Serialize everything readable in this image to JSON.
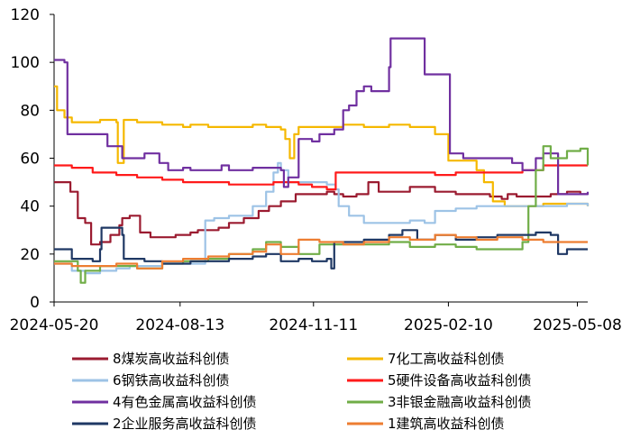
{
  "chart_data": {
    "type": "line",
    "ylim": [
      0,
      120
    ],
    "yticks": [
      0,
      20,
      40,
      60,
      80,
      100,
      120
    ],
    "xlim": [
      "2024-05-20",
      "2025-05-15"
    ],
    "xticks": [
      "2024-05-20",
      "2024-08-13",
      "2024-11-11",
      "2025-02-10",
      "2025-05-08"
    ],
    "legend_position": "bottom",
    "grid": false,
    "series": [
      {
        "name": "8煤炭高收益科创债",
        "color": "#9b1b30",
        "x": [
          "2024-05-20",
          "2024-05-27",
          "2024-05-31",
          "2024-06-05",
          "2024-06-10",
          "2024-06-14",
          "2024-06-20",
          "2024-06-27",
          "2024-07-03",
          "2024-07-05",
          "2024-07-10",
          "2024-07-17",
          "2024-07-24",
          "2024-08-01",
          "2024-08-10",
          "2024-08-20",
          "2024-08-25",
          "2024-09-01",
          "2024-09-08",
          "2024-09-15",
          "2024-09-25",
          "2024-10-05",
          "2024-10-12",
          "2024-10-20",
          "2024-10-30",
          "2024-11-05",
          "2024-11-15",
          "2024-11-20",
          "2024-11-25",
          "2024-12-01",
          "2024-12-10",
          "2024-12-18",
          "2024-12-25",
          "2025-01-05",
          "2025-01-15",
          "2025-02-01",
          "2025-02-15",
          "2025-03-01",
          "2025-03-10",
          "2025-03-18",
          "2025-03-22",
          "2025-03-28",
          "2025-04-10",
          "2025-04-20",
          "2025-05-01",
          "2025-05-10",
          "2025-05-15"
        ],
        "y": [
          50,
          50,
          46,
          35,
          33,
          24,
          25,
          28,
          32,
          35,
          36,
          29,
          27,
          27,
          28,
          29,
          30,
          30,
          31,
          33,
          35,
          38,
          40,
          42,
          45,
          45,
          45,
          46,
          45,
          44,
          45,
          50,
          46,
          46,
          48,
          46,
          45,
          45,
          44,
          43,
          45,
          44,
          44,
          45,
          46,
          45,
          45
        ]
      },
      {
        "name": "7化工高收益科创债",
        "color": "#f5b800",
        "x": [
          "2024-05-20",
          "2024-05-22",
          "2024-05-27",
          "2024-06-01",
          "2024-06-10",
          "2024-06-20",
          "2024-07-01",
          "2024-07-02",
          "2024-07-05",
          "2024-07-06",
          "2024-07-15",
          "2024-08-01",
          "2024-08-15",
          "2024-08-20",
          "2024-09-01",
          "2024-09-15",
          "2024-10-01",
          "2024-10-10",
          "2024-10-20",
          "2024-10-23",
          "2024-10-26",
          "2024-10-29",
          "2024-11-01",
          "2024-11-15",
          "2024-12-01",
          "2024-12-15",
          "2025-01-01",
          "2025-01-15",
          "2025-01-25",
          "2025-02-01",
          "2025-02-10",
          "2025-02-20",
          "2025-03-01",
          "2025-03-03",
          "2025-03-06",
          "2025-03-12",
          "2025-03-20",
          "2025-04-01",
          "2025-04-15",
          "2025-05-01",
          "2025-05-15"
        ],
        "y": [
          90,
          80,
          77,
          75,
          75,
          76,
          75,
          58,
          58,
          76,
          75,
          74,
          73,
          74,
          73,
          73,
          74,
          73,
          72,
          68,
          60,
          70,
          73,
          73,
          74,
          73,
          74,
          73,
          73,
          70,
          59,
          59,
          55,
          55,
          50,
          42,
          40,
          40,
          41,
          41,
          40
        ]
      },
      {
        "name": "6钢铁高收益科创债",
        "color": "#9dc3e6",
        "x": [
          "2024-05-20",
          "2024-05-27",
          "2024-06-01",
          "2024-06-10",
          "2024-06-20",
          "2024-07-01",
          "2024-07-10",
          "2024-07-20",
          "2024-08-01",
          "2024-08-15",
          "2024-08-28",
          "2024-08-30",
          "2024-09-05",
          "2024-09-15",
          "2024-09-25",
          "2024-10-01",
          "2024-10-10",
          "2024-10-15",
          "2024-10-18",
          "2024-10-20",
          "2024-10-25",
          "2024-11-01",
          "2024-11-10",
          "2024-11-20",
          "2024-11-26",
          "2024-11-28",
          "2024-12-05",
          "2024-12-15",
          "2025-01-01",
          "2025-01-15",
          "2025-01-25",
          "2025-02-01",
          "2025-02-15",
          "2025-03-01",
          "2025-03-15",
          "2025-04-01",
          "2025-04-15",
          "2025-05-01",
          "2025-05-15"
        ],
        "y": [
          16,
          16,
          13,
          12,
          13,
          14,
          15,
          15,
          16,
          16,
          16,
          34,
          35,
          36,
          36,
          40,
          46,
          54,
          58,
          55,
          50,
          50,
          50,
          49,
          47,
          40,
          36,
          33,
          33,
          34,
          33,
          38,
          39,
          40,
          40,
          40,
          40,
          41,
          40
        ]
      },
      {
        "name": "5硬件设备高收益科创债",
        "color": "#ff1a1a",
        "x": [
          "2024-05-20",
          "2024-06-01",
          "2024-06-15",
          "2024-07-01",
          "2024-07-15",
          "2024-08-01",
          "2024-08-15",
          "2024-09-01",
          "2024-09-15",
          "2024-10-01",
          "2024-10-15",
          "2024-10-25",
          "2024-11-01",
          "2024-11-10",
          "2024-11-20",
          "2024-11-26",
          "2024-12-01",
          "2024-12-15",
          "2025-01-01",
          "2025-01-15",
          "2025-02-01",
          "2025-02-15",
          "2025-03-01",
          "2025-03-15",
          "2025-04-01",
          "2025-04-15",
          "2025-05-01",
          "2025-05-15"
        ],
        "y": [
          57,
          56,
          54,
          53,
          52,
          51,
          50,
          50,
          49,
          49,
          50,
          50,
          49,
          48,
          47,
          54,
          54,
          54,
          54,
          54,
          53,
          54,
          54,
          54,
          55,
          57,
          57,
          57
        ]
      },
      {
        "name": "4有色金属高收益科创债",
        "color": "#7030a0",
        "x": [
          "2024-05-20",
          "2024-05-27",
          "2024-05-29",
          "2024-06-10",
          "2024-06-25",
          "2024-07-01",
          "2024-07-05",
          "2024-07-20",
          "2024-07-30",
          "2024-08-05",
          "2024-08-15",
          "2024-08-20",
          "2024-09-01",
          "2024-09-10",
          "2024-09-15",
          "2024-09-25",
          "2024-10-01",
          "2024-10-20",
          "2024-10-22",
          "2024-10-25",
          "2024-11-01",
          "2024-11-10",
          "2024-11-15",
          "2024-11-25",
          "2024-12-01",
          "2024-12-05",
          "2024-12-10",
          "2024-12-15",
          "2024-12-20",
          "2024-12-28",
          "2025-01-01",
          "2025-01-02",
          "2025-01-10",
          "2025-01-15",
          "2025-01-25",
          "2025-02-10",
          "2025-02-11",
          "2025-02-20",
          "2025-03-01",
          "2025-03-15",
          "2025-03-25",
          "2025-04-01",
          "2025-04-10",
          "2025-04-15",
          "2025-04-25",
          "2025-05-01",
          "2025-05-15"
        ],
        "y": [
          101,
          100,
          70,
          70,
          65,
          65,
          60,
          62,
          58,
          55,
          56,
          55,
          55,
          57,
          55,
          55,
          56,
          55,
          48,
          52,
          68,
          67,
          70,
          72,
          80,
          82,
          88,
          90,
          88,
          88,
          98,
          110,
          110,
          110,
          95,
          95,
          62,
          60,
          60,
          60,
          58,
          55,
          60,
          62,
          45,
          45,
          46
        ]
      },
      {
        "name": "3非银金融高收益科创债",
        "color": "#70ad47",
        "x": [
          "2024-05-20",
          "2024-06-01",
          "2024-06-05",
          "2024-06-07",
          "2024-06-10",
          "2024-06-20",
          "2024-07-01",
          "2024-07-15",
          "2024-08-01",
          "2024-08-15",
          "2024-09-01",
          "2024-09-15",
          "2024-10-01",
          "2024-10-10",
          "2024-10-20",
          "2024-11-01",
          "2024-11-15",
          "2024-12-01",
          "2024-12-15",
          "2025-01-01",
          "2025-01-15",
          "2025-02-01",
          "2025-02-15",
          "2025-03-01",
          "2025-03-15",
          "2025-03-25",
          "2025-04-01",
          "2025-04-05",
          "2025-04-10",
          "2025-04-15",
          "2025-04-20",
          "2025-05-01",
          "2025-05-10",
          "2025-05-15"
        ],
        "y": [
          17,
          17,
          13,
          8,
          13,
          15,
          15,
          14,
          16,
          17,
          18,
          20,
          22,
          25,
          23,
          20,
          24,
          24,
          24,
          25,
          23,
          24,
          23,
          22,
          22,
          22,
          25,
          40,
          55,
          65,
          60,
          63,
          64,
          57
        ]
      },
      {
        "name": "2企业服务高收益科创债",
        "color": "#1f3864",
        "x": [
          "2024-05-20",
          "2024-06-01",
          "2024-06-15",
          "2024-06-20",
          "2024-06-21",
          "2024-07-01",
          "2024-07-05",
          "2024-07-06",
          "2024-07-20",
          "2024-08-01",
          "2024-08-15",
          "2024-08-20",
          "2024-09-01",
          "2024-09-15",
          "2024-10-01",
          "2024-10-10",
          "2024-10-20",
          "2024-11-01",
          "2024-11-10",
          "2024-11-20",
          "2024-11-23",
          "2024-11-25",
          "2024-12-01",
          "2024-12-15",
          "2025-01-01",
          "2025-01-10",
          "2025-01-20",
          "2025-02-01",
          "2025-02-15",
          "2025-03-01",
          "2025-03-15",
          "2025-04-01",
          "2025-04-10",
          "2025-04-20",
          "2025-04-25",
          "2025-05-01",
          "2025-05-15"
        ],
        "y": [
          22,
          18,
          17,
          22,
          31,
          31,
          28,
          18,
          17,
          16,
          16,
          17,
          17,
          18,
          19,
          20,
          17,
          18,
          17,
          18,
          14,
          25,
          25,
          26,
          28,
          30,
          26,
          28,
          26,
          27,
          28,
          28,
          29,
          28,
          20,
          22,
          22
        ]
      },
      {
        "name": "1建筑高收益科创债",
        "color": "#ed7d31",
        "x": [
          "2024-05-20",
          "2024-06-01",
          "2024-06-15",
          "2024-07-01",
          "2024-07-15",
          "2024-08-01",
          "2024-08-15",
          "2024-09-01",
          "2024-09-15",
          "2024-10-01",
          "2024-10-10",
          "2024-10-20",
          "2024-11-01",
          "2024-11-15",
          "2024-12-01",
          "2024-12-15",
          "2025-01-01",
          "2025-01-15",
          "2025-02-01",
          "2025-02-15",
          "2025-03-01",
          "2025-03-15",
          "2025-04-01",
          "2025-04-15",
          "2025-05-01",
          "2025-05-15"
        ],
        "y": [
          16,
          15,
          15,
          16,
          14,
          17,
          18,
          19,
          20,
          21,
          24,
          20,
          26,
          25,
          24,
          25,
          27,
          26,
          28,
          27,
          26,
          27,
          26,
          25,
          25,
          25
        ]
      }
    ]
  }
}
